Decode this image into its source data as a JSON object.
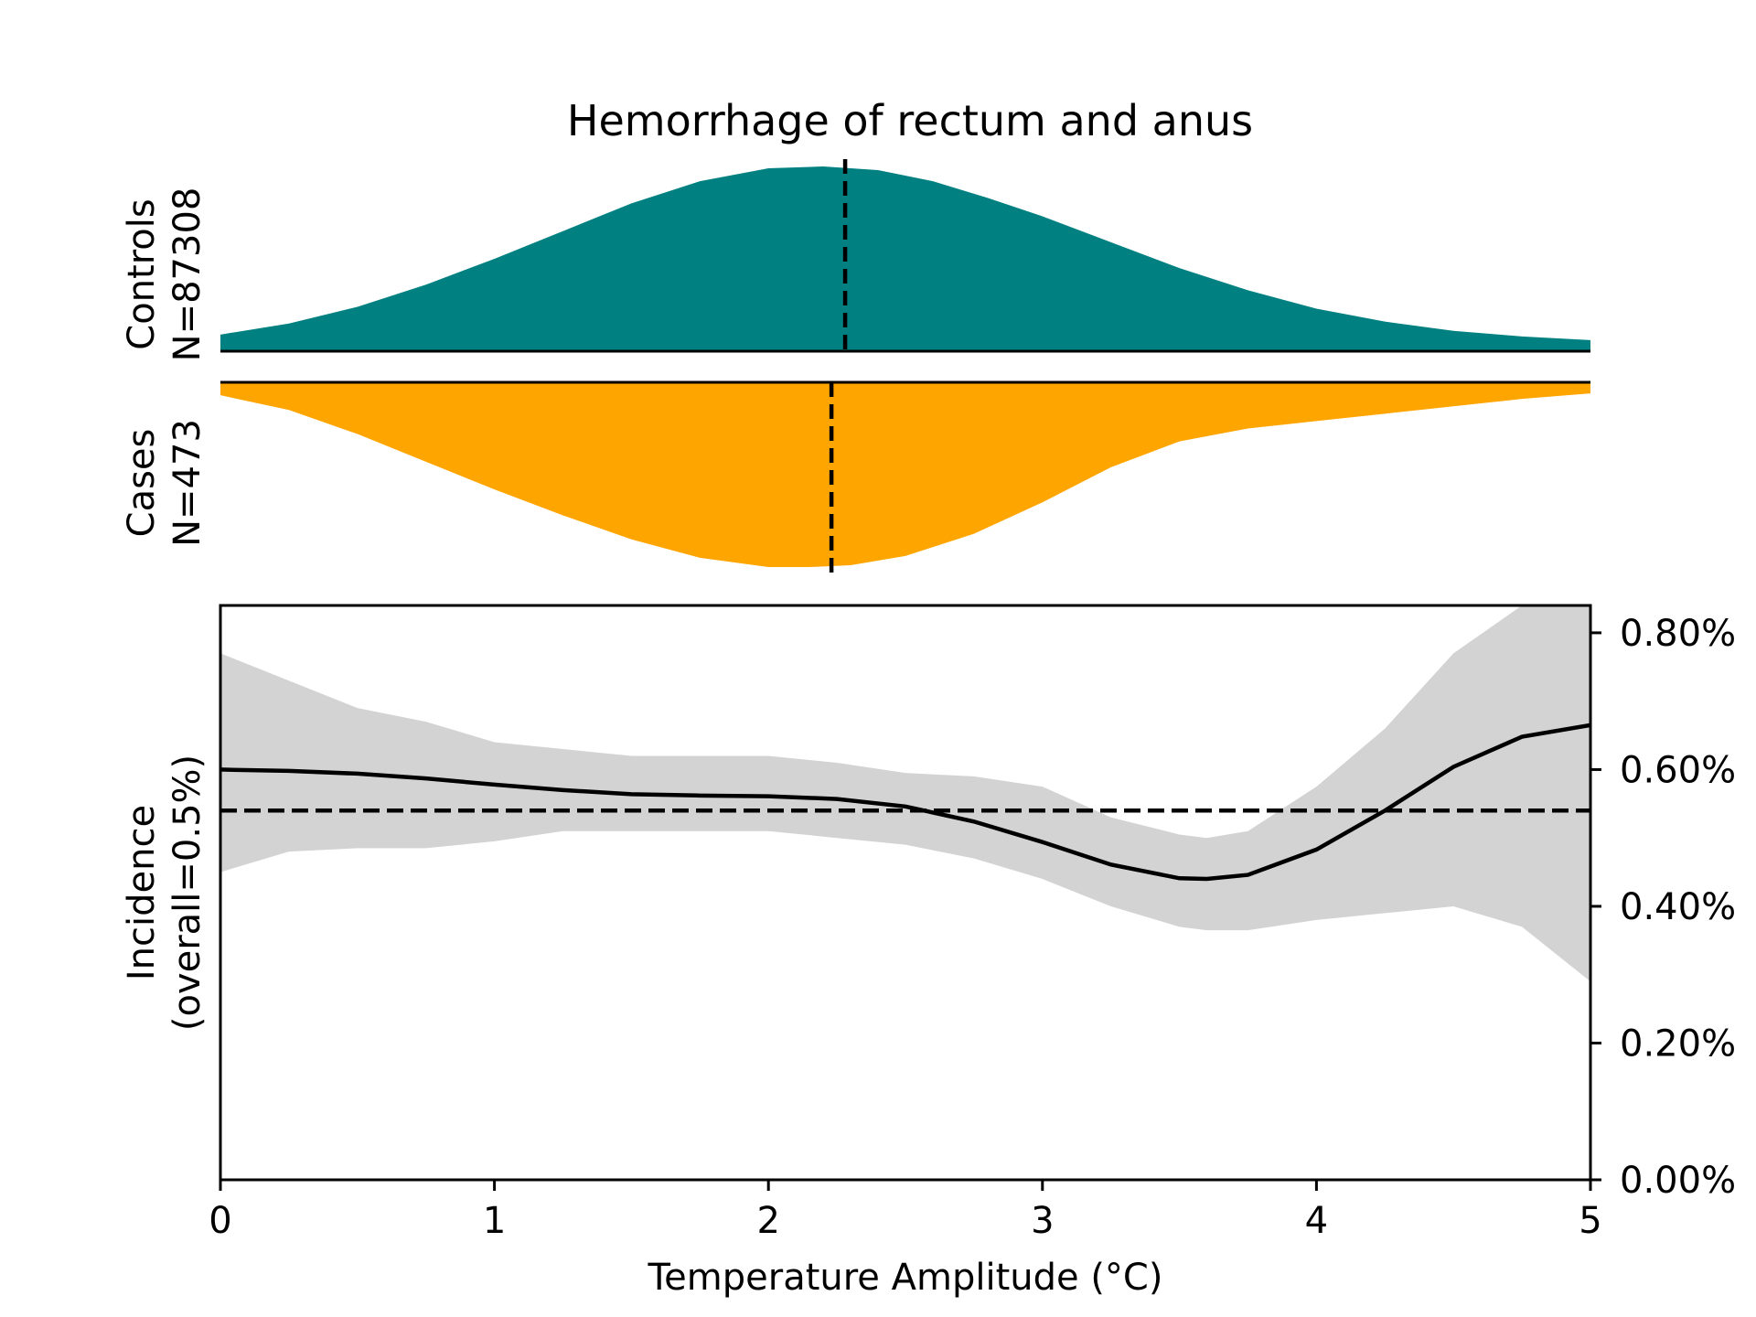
{
  "chart_data": {
    "type": "area",
    "title": "Hemorrhage of rectum and anus",
    "xlabel": "Temperature Amplitude (°C)",
    "xlim": [
      0,
      5
    ],
    "x_ticks": [
      "0",
      "1",
      "2",
      "3",
      "4",
      "5"
    ],
    "x_tick_values": [
      0,
      1,
      2,
      3,
      4,
      5
    ],
    "colors": {
      "controls": "#008080",
      "cases": "#FFA500",
      "ci_band": "#D3D3D3",
      "line": "#000000"
    },
    "controls": {
      "label_line1": "Controls",
      "label_line2": "N=87308",
      "median": 2.28,
      "density": {
        "x": [
          0,
          0.25,
          0.5,
          0.75,
          1.0,
          1.25,
          1.5,
          1.75,
          2.0,
          2.2,
          2.4,
          2.6,
          2.8,
          3.0,
          3.25,
          3.5,
          3.75,
          4.0,
          4.25,
          4.5,
          4.75,
          5.0
        ],
        "y": [
          0.09,
          0.15,
          0.24,
          0.36,
          0.5,
          0.65,
          0.8,
          0.92,
          0.99,
          1.0,
          0.98,
          0.92,
          0.83,
          0.73,
          0.59,
          0.45,
          0.33,
          0.23,
          0.16,
          0.11,
          0.08,
          0.06
        ]
      }
    },
    "cases": {
      "label_line1": "Cases",
      "label_line2": "N=473",
      "median": 2.23,
      "density": {
        "x": [
          0,
          0.25,
          0.5,
          0.75,
          1.0,
          1.25,
          1.5,
          1.75,
          2.0,
          2.15,
          2.3,
          2.5,
          2.75,
          3.0,
          3.25,
          3.5,
          3.75,
          4.0,
          4.25,
          4.5,
          4.75,
          5.0
        ],
        "y": [
          0.07,
          0.15,
          0.28,
          0.43,
          0.58,
          0.72,
          0.85,
          0.95,
          1.0,
          1.0,
          0.99,
          0.94,
          0.82,
          0.65,
          0.46,
          0.32,
          0.25,
          0.21,
          0.17,
          0.13,
          0.09,
          0.06
        ]
      }
    },
    "incidence": {
      "ylabel_line1": "Incidence",
      "ylabel_line2": "(overall=0.5%)",
      "ylim": [
        0,
        0.84
      ],
      "y_ticks": [
        "0.00%",
        "0.20%",
        "0.40%",
        "0.60%",
        "0.80%"
      ],
      "y_tick_values": [
        0,
        0.2,
        0.4,
        0.6,
        0.8
      ],
      "overall": 0.54,
      "x": [
        0,
        0.25,
        0.5,
        0.75,
        1.0,
        1.25,
        1.5,
        1.75,
        2.0,
        2.25,
        2.5,
        2.75,
        3.0,
        3.25,
        3.5,
        3.6,
        3.75,
        4.0,
        4.25,
        4.5,
        4.75,
        5.0
      ],
      "y": [
        0.6,
        0.598,
        0.594,
        0.587,
        0.578,
        0.57,
        0.564,
        0.562,
        0.561,
        0.557,
        0.546,
        0.524,
        0.494,
        0.461,
        0.441,
        0.44,
        0.446,
        0.483,
        0.54,
        0.604,
        0.648,
        0.665
      ],
      "ci_lower": [
        0.45,
        0.48,
        0.485,
        0.485,
        0.495,
        0.51,
        0.51,
        0.51,
        0.51,
        0.5,
        0.49,
        0.47,
        0.44,
        0.4,
        0.37,
        0.365,
        0.365,
        0.38,
        0.39,
        0.4,
        0.37,
        0.29
      ],
      "ci_upper": [
        0.77,
        0.73,
        0.69,
        0.67,
        0.64,
        0.63,
        0.62,
        0.62,
        0.62,
        0.61,
        0.595,
        0.59,
        0.575,
        0.53,
        0.505,
        0.5,
        0.51,
        0.575,
        0.66,
        0.77,
        0.84,
        0.84
      ]
    }
  }
}
